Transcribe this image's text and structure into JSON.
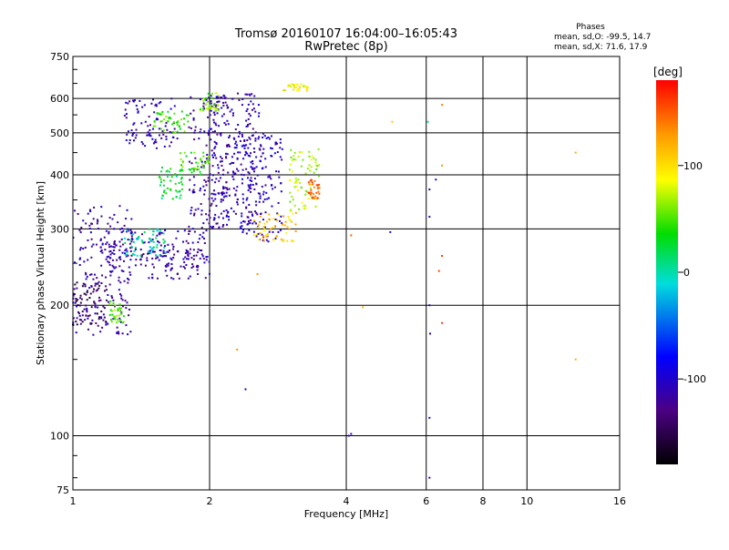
{
  "chart_data": {
    "type": "scatter",
    "title": "Tromsø 20160107 16:04:00–16:05:43",
    "subtitle": "RwPretec (8p)",
    "xlabel": "Frequency [MHz]",
    "ylabel": "Stationary phase Virtual Height [km]",
    "x_scale": "log",
    "y_scale": "log",
    "xlim": [
      1,
      16
    ],
    "ylim": [
      75,
      750
    ],
    "x_ticks": [
      1,
      2,
      4,
      6,
      8,
      10,
      16
    ],
    "y_ticks": [
      75,
      100,
      200,
      300,
      400,
      500,
      600,
      750
    ],
    "grid": true,
    "stats": {
      "title": "Phases",
      "line1": "mean, sd,O:  -99.5, 14.7",
      "line2": "mean, sd,X:  71.6, 17.9"
    },
    "colorbar": {
      "label": "[deg]",
      "ticks": [
        100,
        0,
        -100
      ],
      "range": [
        -180,
        180
      ]
    },
    "series": [
      {
        "clusters": [
          {
            "f": [
              1.0,
              1.35
            ],
            "h": [
              170,
              340
            ],
            "phase": -105
          },
          {
            "f": [
              1.0,
              1.2
            ],
            "h": [
              180,
              230
            ],
            "phase": -140
          },
          {
            "f": [
              1.15,
              2.0
            ],
            "h": [
              245,
              300
            ],
            "phase": -100
          },
          {
            "f": [
              1.4,
              2.0
            ],
            "h": [
              230,
              270
            ],
            "phase": -110
          },
          {
            "f": [
              1.8,
              2.2
            ],
            "h": [
              300,
              610
            ],
            "phase": -105
          },
          {
            "f": [
              2.0,
              2.6
            ],
            "h": [
              300,
              620
            ],
            "phase": -100
          },
          {
            "f": [
              2.2,
              2.9
            ],
            "h": [
              280,
              500
            ],
            "phase": -95
          },
          {
            "f": [
              1.3,
              1.7
            ],
            "h": [
              460,
              600
            ],
            "phase": -100
          }
        ]
      },
      {
        "clusters": [
          {
            "f": [
              1.55,
              1.75
            ],
            "h": [
              350,
              420
            ],
            "phase": 30
          },
          {
            "f": [
              1.7,
              2.0
            ],
            "h": [
              400,
              450
            ],
            "phase": 50
          },
          {
            "f": [
              1.5,
              1.8
            ],
            "h": [
              500,
              560
            ],
            "phase": 50
          },
          {
            "f": [
              1.9,
              2.1
            ],
            "h": [
              560,
              620
            ],
            "phase": 60
          },
          {
            "f": [
              1.2,
              1.3
            ],
            "h": [
              180,
              205
            ],
            "phase": 60
          },
          {
            "f": [
              1.3,
              1.6
            ],
            "h": [
              260,
              300
            ],
            "phase": 10
          },
          {
            "f": [
              2.5,
              3.1
            ],
            "h": [
              280,
              330
            ],
            "phase": 110
          },
          {
            "f": [
              3.0,
              3.5
            ],
            "h": [
              330,
              460
            ],
            "phase": 75
          },
          {
            "f": [
              3.3,
              3.5
            ],
            "h": [
              350,
              390
            ],
            "phase": 150
          },
          {
            "f": [
              2.9,
              3.3
            ],
            "h": [
              625,
              650
            ],
            "phase": 90
          }
        ],
        "isolated": [
          {
            "f": 4.1,
            "h": 290,
            "phase": 150
          },
          {
            "f": 4.35,
            "h": 198,
            "phase": 120
          },
          {
            "f": 5.05,
            "h": 530,
            "phase": 110
          },
          {
            "f": 6.05,
            "h": 530,
            "phase": 10
          },
          {
            "f": 6.5,
            "h": 420,
            "phase": 130
          },
          {
            "f": 6.5,
            "h": 260,
            "phase": 160
          },
          {
            "f": 6.4,
            "h": 240,
            "phase": 160
          },
          {
            "f": 6.5,
            "h": 182,
            "phase": 160
          },
          {
            "f": 6.5,
            "h": 580,
            "phase": 140
          },
          {
            "f": 12.8,
            "h": 450,
            "phase": 120
          },
          {
            "f": 12.8,
            "h": 150,
            "phase": 120
          },
          {
            "f": 2.55,
            "h": 236,
            "phase": 130
          },
          {
            "f": 2.3,
            "h": 158,
            "phase": 130
          }
        ]
      },
      {
        "isolated": [
          {
            "f": 4.1,
            "h": 101,
            "phase": -100
          },
          {
            "f": 4.05,
            "h": 100,
            "phase": -100
          },
          {
            "f": 5.0,
            "h": 295,
            "phase": -100
          },
          {
            "f": 6.1,
            "h": 370,
            "phase": -100
          },
          {
            "f": 6.1,
            "h": 320,
            "phase": -100
          },
          {
            "f": 6.1,
            "h": 200,
            "phase": -100
          },
          {
            "f": 6.12,
            "h": 172,
            "phase": -100
          },
          {
            "f": 6.1,
            "h": 110,
            "phase": -100
          },
          {
            "f": 6.1,
            "h": 80,
            "phase": -100
          },
          {
            "f": 6.3,
            "h": 390,
            "phase": -100
          },
          {
            "f": 2.4,
            "h": 128,
            "phase": -100
          }
        ]
      }
    ]
  }
}
